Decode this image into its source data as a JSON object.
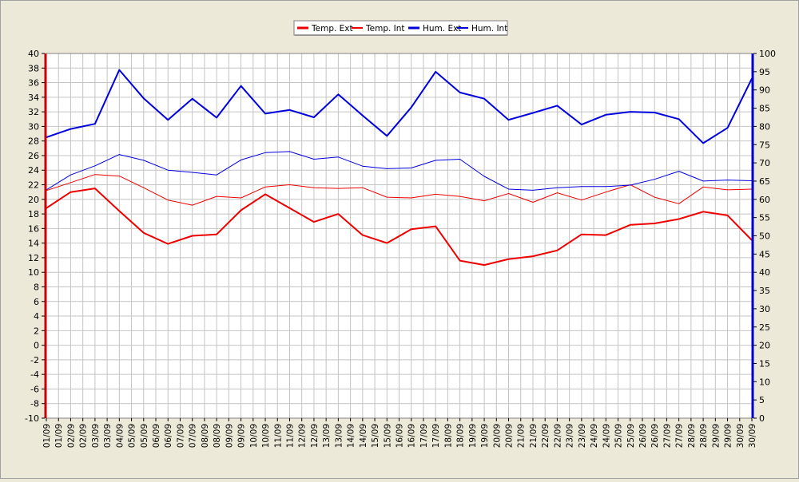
{
  "chart_data": {
    "type": "line",
    "title": "",
    "xlabel": "",
    "ylabel": "",
    "y2label": "",
    "grid": true,
    "legend_position": "top",
    "ylim": [
      -10,
      40
    ],
    "y2lim": [
      0,
      100
    ],
    "yticks": [
      "40",
      "38",
      "36",
      "34",
      "32",
      "30",
      "28",
      "26",
      "24",
      "22",
      "20",
      "18",
      "16",
      "14",
      "12",
      "10",
      "8",
      "6",
      "4",
      "2",
      "0",
      "-2",
      "-4",
      "-6",
      "-8",
      "-10"
    ],
    "y2ticks": [
      "100",
      "95",
      "90",
      "85",
      "80",
      "75",
      "70",
      "65",
      "60",
      "55",
      "50",
      "45",
      "40",
      "35",
      "30",
      "25",
      "20",
      "15",
      "10",
      "5",
      "0"
    ],
    "xtick_labels": [
      "01/09",
      "01/09",
      "02/09",
      "02/09",
      "03/09",
      "03/09",
      "04/09",
      "05/09",
      "05/09",
      "06/09",
      "06/09",
      "07/09",
      "07/09",
      "08/09",
      "08/09",
      "09/09",
      "09/09",
      "10/09",
      "10/09",
      "11/09",
      "11/09",
      "12/09",
      "12/09",
      "13/09",
      "13/09",
      "14/09",
      "14/09",
      "15/09",
      "15/09",
      "16/09",
      "16/09",
      "17/09",
      "17/09",
      "18/09",
      "18/09",
      "19/09",
      "19/09",
      "20/09",
      "20/09",
      "21/09",
      "21/09",
      "22/09",
      "22/09",
      "23/09",
      "23/09",
      "24/09",
      "24/09",
      "25/09",
      "25/09",
      "26/09",
      "26/09",
      "27/09",
      "27/09",
      "28/09",
      "28/09",
      "29/09",
      "29/09",
      "30/09",
      "30/09"
    ],
    "x": [
      "01/09",
      "02/09",
      "03/09",
      "04/09",
      "05/09",
      "06/09",
      "07/09",
      "08/09",
      "09/09",
      "10/09",
      "11/09",
      "12/09",
      "13/09",
      "14/09",
      "15/09",
      "16/09",
      "17/09",
      "18/09",
      "19/09",
      "20/09",
      "21/09",
      "22/09",
      "23/09",
      "24/09",
      "25/09",
      "26/09",
      "27/09",
      "28/09",
      "29/09",
      "30/09"
    ],
    "series": [
      {
        "name": "Temp. Ext",
        "axis": "left",
        "color": "#ee0000",
        "width": 2,
        "values": [
          18.8,
          21.0,
          21.5,
          18.4,
          15.4,
          13.9,
          15.0,
          15.2,
          18.5,
          20.7,
          18.8,
          16.9,
          18.0,
          15.1,
          14.0,
          15.9,
          16.3,
          11.6,
          11.0,
          11.8,
          12.2,
          13.0,
          15.2,
          15.1,
          16.5,
          16.7,
          17.3,
          18.3,
          17.8,
          14.4
        ]
      },
      {
        "name": "Temp. Int",
        "axis": "left",
        "color": "#ee0000",
        "width": 1,
        "values": [
          21.2,
          22.3,
          23.4,
          23.2,
          21.6,
          19.9,
          19.2,
          20.4,
          20.2,
          21.7,
          22.0,
          21.6,
          21.5,
          21.6,
          20.3,
          20.2,
          20.7,
          20.4,
          19.8,
          20.8,
          19.6,
          20.9,
          19.9,
          21.0,
          22.0,
          20.3,
          19.4,
          21.7,
          21.3,
          21.4
        ]
      },
      {
        "name": "Hum. Ext",
        "axis": "right",
        "color": "#0000dd",
        "width": 2,
        "values": [
          77.0,
          79.3,
          80.7,
          95.5,
          87.7,
          81.8,
          87.6,
          82.4,
          91.1,
          83.5,
          84.5,
          82.5,
          88.8,
          83.0,
          77.4,
          85.2,
          95.0,
          89.3,
          87.6,
          81.8,
          83.7,
          85.7,
          80.5,
          83.2,
          84.0,
          83.8,
          82.0,
          75.4,
          79.6,
          93.1
        ]
      },
      {
        "name": "Hum. Int",
        "axis": "right",
        "color": "#0000dd",
        "width": 1,
        "values": [
          62.6,
          66.7,
          69.2,
          72.3,
          70.7,
          68.0,
          67.4,
          66.7,
          70.8,
          72.8,
          73.1,
          71.0,
          71.6,
          69.1,
          68.4,
          68.6,
          70.7,
          71.0,
          66.3,
          62.8,
          62.5,
          63.2,
          63.5,
          63.5,
          63.9,
          65.5,
          67.7,
          65.0,
          65.3,
          65.1
        ]
      }
    ]
  }
}
